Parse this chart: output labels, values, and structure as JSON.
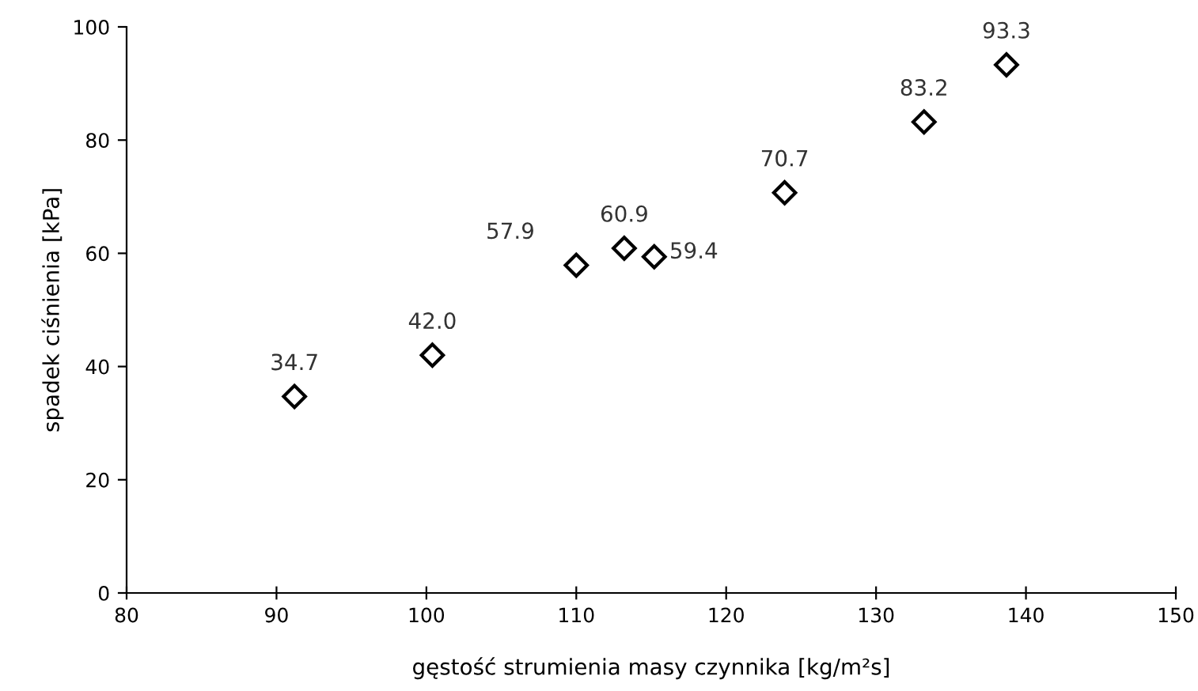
{
  "chart_data": {
    "type": "scatter",
    "xlabel": "gęstość strumienia masy czynnika [kg/m²s]",
    "ylabel": "spadek ciśnienia [kPa]",
    "x": [
      91.2,
      100.4,
      110.0,
      113.2,
      115.2,
      123.9,
      133.2,
      138.7
    ],
    "series": [
      {
        "color": "#000000",
        "values": [
          34.7,
          42.0,
          57.9,
          60.9,
          59.4,
          70.7,
          83.2,
          93.3
        ],
        "value_labels": [
          "34.7",
          "42.0",
          "57.9",
          "60.9",
          "59.4",
          "70.7",
          "83.2",
          "93.3"
        ]
      }
    ],
    "xlim": [
      80,
      150
    ],
    "xticks": [
      80,
      90,
      100,
      110,
      120,
      130,
      140,
      150
    ],
    "ylim": [
      0,
      100
    ],
    "yticks": [
      0,
      20,
      40,
      60,
      80,
      100
    ],
    "marker": "diamond"
  }
}
